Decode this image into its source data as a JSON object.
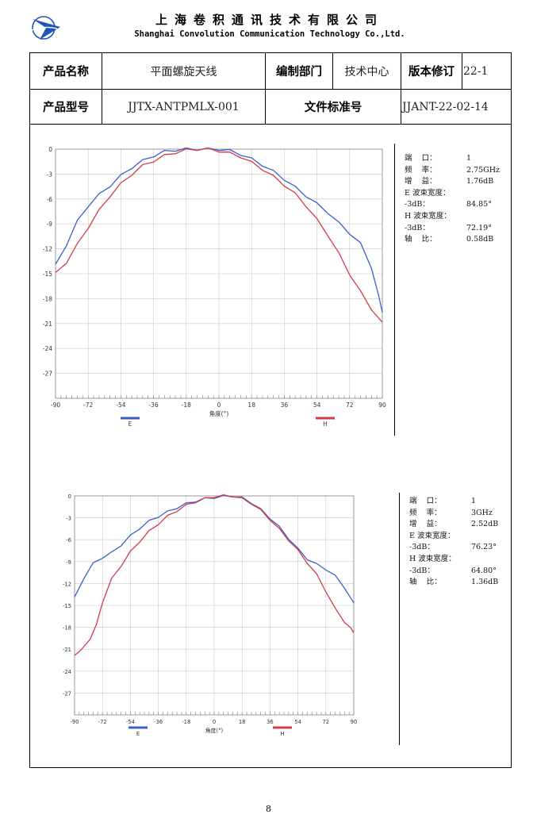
{
  "header": {
    "company_cn": "上海卷积通讯技术有限公司",
    "company_en": "Shanghai Convolution Communication Technology Co.,Ltd."
  },
  "info_table": {
    "product_name_label": "产品名称",
    "product_name": "平面螺旋天线",
    "dept_label": "编制部门",
    "dept": "技术中心",
    "revision_label": "版本修订",
    "revision": "22-1",
    "model_label": "产品型号",
    "model": "JJTX-ANTPMLX-001",
    "doc_std_label": "文件标准号",
    "doc_std": "JJANT-22-02-14"
  },
  "colors": {
    "E": "#3a5fc9",
    "H": "#d33a4a"
  },
  "chart_data": [
    {
      "type": "line",
      "xlabel": "角度(°)",
      "ylabel": "",
      "xlim": [
        -90,
        90
      ],
      "ylim": [
        -30,
        0
      ],
      "xticks": [
        -90,
        -72,
        -54,
        -36,
        -18,
        0,
        18,
        36,
        54,
        72,
        90
      ],
      "yticks": [
        0,
        -3,
        -6,
        -9,
        -12,
        -15,
        -18,
        -21,
        -24,
        -27
      ],
      "grid": true,
      "legend": "bottom",
      "series": [
        {
          "name": "E",
          "x": [
            -90,
            -84,
            -78,
            -72,
            -66,
            -60,
            -54,
            -48,
            -42,
            -36,
            -30,
            -24,
            -18,
            -12,
            -6,
            0,
            6,
            12,
            18,
            24,
            30,
            36,
            42,
            48,
            54,
            60,
            66,
            72,
            78,
            84,
            88,
            90
          ],
          "values": [
            -14.0,
            -11.5,
            -8.7,
            -6.8,
            -5.5,
            -4.4,
            -3.2,
            -2.2,
            -1.4,
            -0.8,
            -0.3,
            -0.1,
            0.0,
            0.0,
            0.0,
            0.0,
            -0.2,
            -0.6,
            -1.2,
            -1.9,
            -2.7,
            -3.6,
            -4.6,
            -5.6,
            -6.6,
            -7.6,
            -8.9,
            -10.1,
            -11.4,
            -14.2,
            -17.8,
            -19.5
          ]
        },
        {
          "name": "H",
          "x": [
            -90,
            -84,
            -78,
            -72,
            -66,
            -60,
            -54,
            -48,
            -42,
            -36,
            -30,
            -24,
            -18,
            -12,
            -6,
            0,
            6,
            12,
            18,
            24,
            30,
            36,
            42,
            48,
            54,
            60,
            66,
            72,
            78,
            84,
            90
          ],
          "values": [
            -15.0,
            -13.6,
            -11.5,
            -9.4,
            -7.4,
            -5.6,
            -4.2,
            -3.0,
            -2.0,
            -1.4,
            -0.8,
            -0.4,
            -0.1,
            0.0,
            0.0,
            -0.2,
            -0.5,
            -0.9,
            -1.6,
            -2.4,
            -3.3,
            -4.3,
            -5.4,
            -6.8,
            -8.5,
            -10.3,
            -12.6,
            -15.0,
            -17.2,
            -19.2,
            -21.0
          ]
        }
      ],
      "info": [
        {
          "k": "端    口：",
          "v": "1"
        },
        {
          "k": "频    率：",
          "v": "2.75GHz"
        },
        {
          "k": "增    益：",
          "v": "1.76dB"
        },
        {
          "k": "E 波束宽度：",
          "v": ""
        },
        {
          "k": "-3dB：",
          "v": "84.85°"
        },
        {
          "k": "H 波束宽度：",
          "v": ""
        },
        {
          "k": "-3dB：",
          "v": "72.19°"
        },
        {
          "k": "轴    比：",
          "v": "0.58dB"
        }
      ]
    },
    {
      "type": "line",
      "xlabel": "角度(°)",
      "ylabel": "",
      "xlim": [
        -90,
        90
      ],
      "ylim": [
        -30,
        0
      ],
      "xticks": [
        -90,
        -72,
        -54,
        -36,
        -18,
        0,
        18,
        36,
        54,
        72,
        90
      ],
      "yticks": [
        0,
        -3,
        -6,
        -9,
        -12,
        -15,
        -18,
        -21,
        -24,
        -27
      ],
      "grid": true,
      "legend": "bottom",
      "series": [
        {
          "name": "E",
          "x": [
            -90,
            -84,
            -78,
            -72,
            -66,
            -60,
            -54,
            -48,
            -42,
            -36,
            -30,
            -24,
            -18,
            -12,
            -6,
            0,
            6,
            12,
            18,
            24,
            30,
            36,
            42,
            48,
            54,
            60,
            66,
            72,
            78,
            84,
            90
          ],
          "values": [
            -14.0,
            -11.2,
            -9.3,
            -8.4,
            -7.8,
            -6.7,
            -5.5,
            -4.4,
            -3.5,
            -2.8,
            -2.2,
            -1.6,
            -1.1,
            -0.7,
            -0.4,
            -0.2,
            -0.1,
            0.0,
            -0.3,
            -0.9,
            -1.9,
            -3.0,
            -4.3,
            -5.8,
            -7.3,
            -8.6,
            -9.4,
            -10.0,
            -11.0,
            -12.5,
            -14.8
          ]
        },
        {
          "name": "H",
          "x": [
            -90,
            -87,
            -84,
            -80,
            -76,
            -72,
            -66,
            -60,
            -54,
            -48,
            -42,
            -36,
            -30,
            -24,
            -18,
            -12,
            -6,
            0,
            6,
            12,
            18,
            24,
            30,
            36,
            42,
            48,
            54,
            60,
            66,
            72,
            78,
            84,
            88,
            90
          ],
          "values": [
            -22.0,
            -21.2,
            -20.8,
            -19.5,
            -17.8,
            -14.5,
            -11.4,
            -9.5,
            -7.7,
            -6.2,
            -4.9,
            -3.8,
            -2.8,
            -2.0,
            -1.3,
            -0.8,
            -0.4,
            -0.1,
            0.0,
            0.0,
            -0.4,
            -1.0,
            -2.0,
            -3.2,
            -4.6,
            -6.0,
            -7.5,
            -9.1,
            -10.8,
            -13.0,
            -15.5,
            -17.2,
            -18.2,
            -18.6
          ]
        }
      ],
      "info": [
        {
          "k": "端    口：",
          "v": "1"
        },
        {
          "k": "频    率：",
          "v": "3GHz"
        },
        {
          "k": "增    益：",
          "v": "2.52dB"
        },
        {
          "k": "E 波束宽度：",
          "v": ""
        },
        {
          "k": "-3dB：",
          "v": "76.23°"
        },
        {
          "k": "H 波束宽度：",
          "v": ""
        },
        {
          "k": "-3dB：",
          "v": "64.80°"
        },
        {
          "k": "轴    比：",
          "v": "1.36dB"
        }
      ]
    }
  ],
  "footer": {
    "page_number": "8"
  }
}
